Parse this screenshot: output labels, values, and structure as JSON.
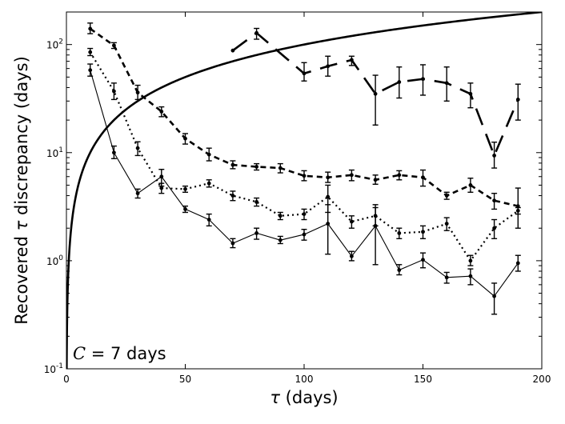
{
  "chart_data": {
    "type": "line",
    "xlabel_symbol": "τ",
    "xlabel_rest": " (days)",
    "ylabel_pre": "Recovered ",
    "ylabel_symbol": "τ",
    "ylabel_post": " discrepancy (days)",
    "annotation_symbol": "C",
    "annotation_rest": " = 7 days",
    "xlim": [
      0,
      200
    ],
    "ylim": [
      0.1,
      200
    ],
    "yscale": "log",
    "x_ticks": [
      0,
      50,
      100,
      150,
      200
    ],
    "x_tick_labels": [
      "0",
      "50",
      "100",
      "150",
      "200"
    ],
    "y_ticks": [
      0.1,
      1,
      10,
      100
    ],
    "y_tick_labels": [
      {
        "base": "10",
        "exp": "-1"
      },
      {
        "base": "10",
        "exp": "0"
      },
      {
        "base": "10",
        "exp": "1"
      },
      {
        "base": "10",
        "exp": "2"
      }
    ],
    "series": [
      {
        "name": "reference y = x",
        "style": "thick-solid",
        "function": "identity"
      },
      {
        "name": "long-dash",
        "style": "long-dash",
        "x": [
          70,
          80,
          100,
          110,
          120,
          130,
          140,
          150,
          160,
          170,
          180,
          190
        ],
        "y": [
          88,
          128,
          54,
          63,
          72,
          35,
          45,
          48,
          44,
          35,
          9.4,
          31
        ],
        "err_low": [
          null,
          112,
          46,
          51,
          64,
          18,
          32,
          34,
          30,
          26,
          7.2,
          20
        ],
        "err_high": [
          null,
          141,
          68,
          78,
          78,
          52,
          62,
          65,
          62,
          44,
          12.5,
          43
        ]
      },
      {
        "name": "short-dash",
        "style": "short-dash",
        "x": [
          10,
          20,
          30,
          40,
          50,
          60,
          70,
          80,
          90,
          100,
          110,
          120,
          130,
          140,
          150,
          160,
          170,
          180,
          190
        ],
        "y": [
          140,
          98,
          36,
          24,
          13.5,
          9.6,
          7.7,
          7.4,
          7.2,
          6.1,
          5.9,
          6.2,
          5.6,
          6.2,
          5.9,
          4.0,
          5.0,
          3.6,
          3.2
        ],
        "err_low": [
          126,
          92,
          31,
          21.5,
          12,
          8.4,
          7.1,
          6.9,
          6.5,
          5.5,
          5.3,
          5.5,
          5.1,
          5.6,
          4.9,
          3.7,
          4.3,
          3.0,
          2.0
        ],
        "err_high": [
          158,
          104,
          42,
          26.5,
          15,
          11,
          8.4,
          7.9,
          7.9,
          6.8,
          6.6,
          6.9,
          6.2,
          6.8,
          6.9,
          4.3,
          5.8,
          4.2,
          4.7
        ]
      },
      {
        "name": "dotted",
        "style": "dotted",
        "x": [
          10,
          20,
          30,
          40,
          50,
          60,
          70,
          80,
          90,
          100,
          110,
          120,
          130,
          140,
          150,
          160,
          170,
          180,
          190
        ],
        "y": [
          85,
          37,
          11,
          4.7,
          4.6,
          5.2,
          4.0,
          3.5,
          2.6,
          2.7,
          3.9,
          2.3,
          2.6,
          1.8,
          1.85,
          2.2,
          1.0,
          2.0,
          2.9
        ],
        "err_low": [
          79,
          31,
          9.4,
          4.2,
          4.3,
          4.8,
          3.6,
          3.2,
          2.4,
          2.4,
          2.8,
          2.0,
          2.1,
          1.6,
          1.6,
          1.9,
          0.9,
          1.6,
          2.7
        ],
        "err_high": [
          92,
          44,
          12.6,
          5.2,
          4.9,
          5.6,
          4.4,
          3.8,
          2.8,
          3.0,
          5.0,
          2.6,
          3.1,
          2.0,
          2.1,
          2.5,
          1.12,
          2.4,
          3.1
        ]
      },
      {
        "name": "thin-solid",
        "style": "thin-solid",
        "x": [
          10,
          20,
          30,
          40,
          50,
          60,
          70,
          80,
          90,
          100,
          110,
          120,
          130,
          140,
          150,
          160,
          170,
          180,
          190
        ],
        "y": [
          58,
          10,
          4.2,
          6.0,
          3.0,
          2.4,
          1.45,
          1.8,
          1.55,
          1.75,
          2.2,
          1.1,
          2.1,
          0.82,
          1.02,
          0.7,
          0.72,
          0.47,
          0.95
        ],
        "err_low": [
          51,
          8.8,
          3.8,
          4.9,
          2.8,
          2.1,
          1.32,
          1.58,
          1.44,
          1.55,
          1.15,
          1.0,
          0.92,
          0.74,
          0.86,
          0.62,
          0.6,
          0.32,
          0.8
        ],
        "err_high": [
          66,
          11.5,
          4.6,
          7.0,
          3.2,
          2.7,
          1.6,
          2.0,
          1.68,
          1.95,
          3.3,
          1.22,
          3.3,
          0.92,
          1.18,
          0.78,
          0.84,
          0.62,
          1.12
        ]
      }
    ]
  }
}
